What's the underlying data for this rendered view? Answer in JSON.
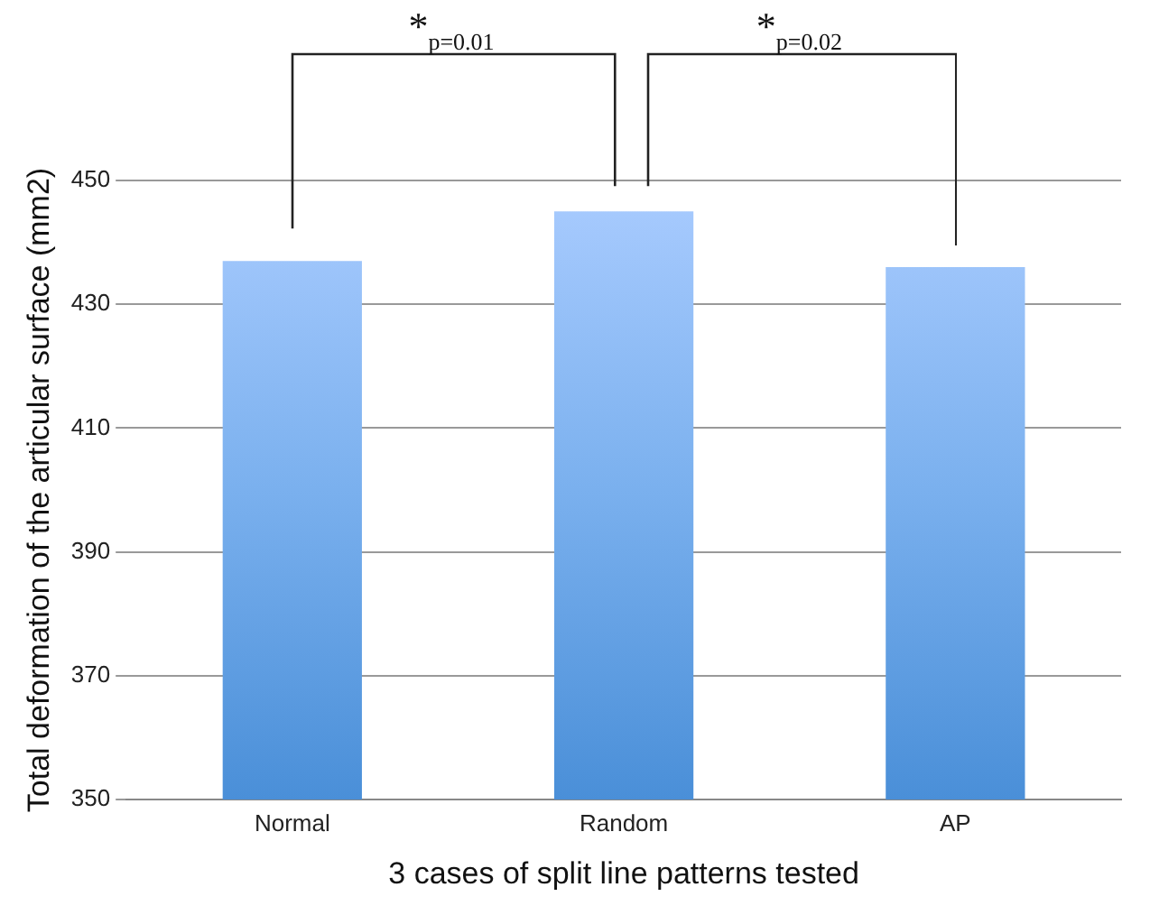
{
  "chart_data": {
    "type": "bar",
    "xlabel": "3 cases of split line patterns tested",
    "ylabel": "Total deformation of the articular surface (mm2)",
    "categories": [
      "Normal",
      "Random",
      "AP"
    ],
    "values": [
      437,
      445,
      436
    ],
    "color": "#7ab0ee",
    "ylim": [
      350,
      450
    ],
    "yticks": [
      350,
      370,
      390,
      410,
      430,
      450
    ],
    "grid": "y",
    "legend": false,
    "annotations": [
      "*$_{p=0.01}$",
      "*$_{p=0.02}$"
    ]
  }
}
